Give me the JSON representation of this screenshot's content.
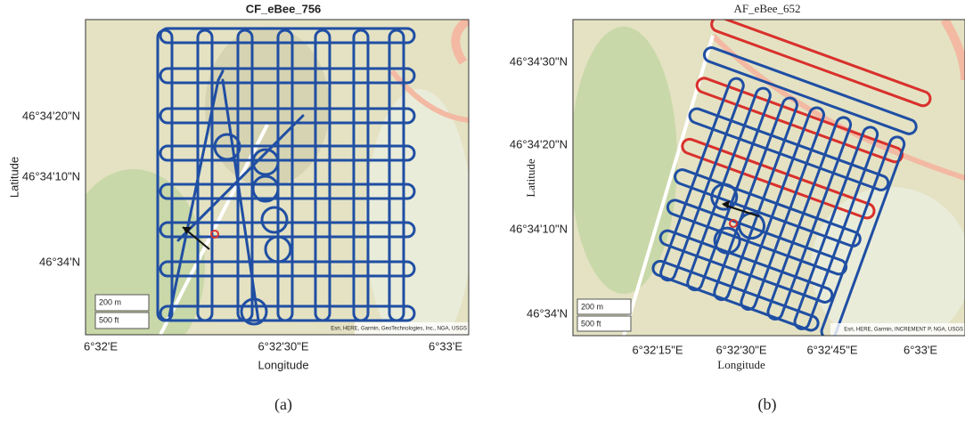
{
  "panels": [
    {
      "title": "CF_eBee_756",
      "xlabel": "Longitude",
      "ylabel": "Latitude",
      "yticks": [
        "46°34'20\"N",
        "46°34'10\"N",
        "46°34'N"
      ],
      "xticks": [
        "6°32'E",
        "6°32'30\"E",
        "6°33'E"
      ],
      "scale_metric": "200 m",
      "scale_imperial": "500 ft",
      "attribution": "Esri, HERE, Garmin, GeoTechnologies, Inc., NGA, USGS",
      "caption": "(a)"
    },
    {
      "title": "AF_eBee_652",
      "xlabel": "Longitude",
      "ylabel": "Latitude",
      "yticks": [
        "46°34'30\"N",
        "46°34'20\"N",
        "46°34'10\"N",
        "46°34'N"
      ],
      "xticks": [
        "6°32'15\"E",
        "6°32'30\"E",
        "6°32'45\"E",
        "6°33'E"
      ],
      "scale_metric": "200 m",
      "scale_imperial": "500 ft",
      "attribution": "Esri, HERE, Garmin, INCREMENT P, NGA, USGS",
      "caption": "(b)"
    }
  ]
}
